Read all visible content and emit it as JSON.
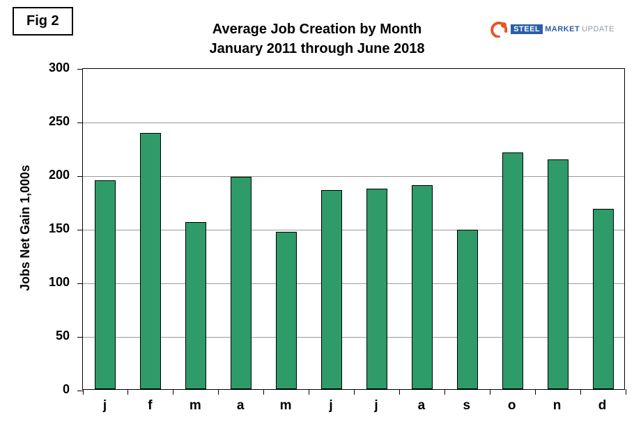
{
  "figure_label": "Fig 2",
  "logo": {
    "steel": "STEEL",
    "market": "MARKET",
    "update": "UPDATE",
    "swoosh_color": "#e8542a",
    "blue": "#2b5ea7",
    "gray": "#8b9aa8"
  },
  "chart_data": {
    "type": "bar",
    "title": "Average Job Creation by Month",
    "subtitle": "January 2011 through June 2018",
    "xlabel": "",
    "ylabel": "Jobs Net Gain 1,000s",
    "categories": [
      "j",
      "f",
      "m",
      "a",
      "m",
      "j",
      "j",
      "a",
      "s",
      "o",
      "n",
      "d"
    ],
    "values": [
      195,
      239,
      156,
      198,
      147,
      186,
      187,
      190,
      149,
      221,
      214,
      168
    ],
    "ylim": [
      0,
      300
    ],
    "yticks": [
      0,
      50,
      100,
      150,
      200,
      250,
      300
    ],
    "bar_color": "#2e9b68",
    "bar_border": "#000000",
    "gridline_color": "#9a9a9a",
    "grid": true,
    "legend": "none"
  }
}
